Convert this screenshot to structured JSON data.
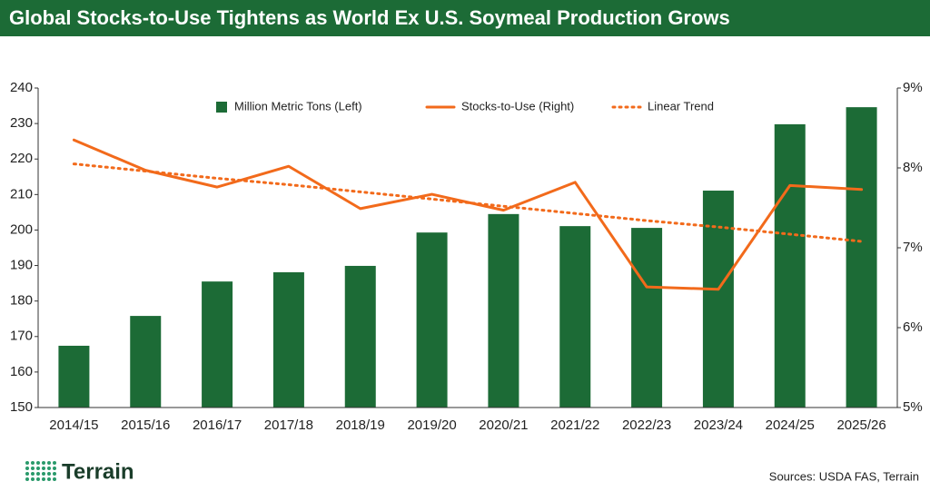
{
  "chart_data": {
    "type": "bar",
    "title": "Global Stocks-to-Use Tightens as World Ex U.S. Soymeal Production Grows",
    "categories": [
      "2014/15",
      "2015/16",
      "2016/17",
      "2017/18",
      "2018/19",
      "2019/20",
      "2020/21",
      "2021/22",
      "2022/23",
      "2023/24",
      "2024/25",
      "2025/26"
    ],
    "series": [
      {
        "name": "Million Metric Tons (Left)",
        "type": "bar",
        "color": "#1c6b36",
        "axis": "y",
        "values": [
          167.4,
          175.8,
          185.5,
          188.1,
          189.9,
          199.3,
          204.5,
          201.1,
          200.6,
          211.1,
          229.8,
          234.6
        ]
      },
      {
        "name": "Stocks-to-Use (Right)",
        "type": "line",
        "color": "#f26a1b",
        "axis": "y2",
        "dash": "solid",
        "values": [
          8.35,
          7.97,
          7.76,
          8.02,
          7.49,
          7.67,
          7.47,
          7.82,
          6.51,
          6.48,
          7.78,
          7.73
        ]
      },
      {
        "name": "Linear Trend",
        "type": "line",
        "color": "#f26a1b",
        "axis": "y2",
        "dash": "dotted",
        "values": [
          8.05,
          7.96,
          7.87,
          7.79,
          7.7,
          7.61,
          7.52,
          7.43,
          7.34,
          7.26,
          7.17,
          7.08
        ]
      }
    ],
    "ylim": [
      150,
      240
    ],
    "yticks": [
      150,
      160,
      170,
      180,
      190,
      200,
      210,
      220,
      230,
      240
    ],
    "y2lim": [
      5,
      9
    ],
    "y2ticks": [
      {
        "value": 5,
        "label": "5%"
      },
      {
        "value": 6,
        "label": "6%"
      },
      {
        "value": 7,
        "label": "7%"
      },
      {
        "value": 8,
        "label": "8%"
      },
      {
        "value": 9,
        "label": "9%"
      }
    ],
    "grid": false,
    "legend": "top"
  },
  "branding": {
    "logo": "Terrain",
    "source": "Sources: USDA FAS, Terrain"
  }
}
